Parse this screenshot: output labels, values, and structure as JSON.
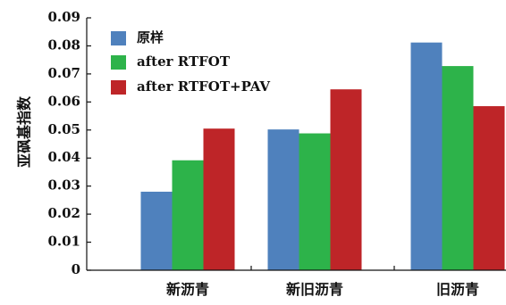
{
  "chart_data": {
    "type": "bar",
    "title": "",
    "xlabel": "",
    "ylabel": "亚砜基指数",
    "ylim": [
      0,
      0.09
    ],
    "yticks": [
      "0",
      "0.01",
      "0.02",
      "0.03",
      "0.04",
      "0.05",
      "0.06",
      "0.07",
      "0.08",
      "0.09"
    ],
    "categories": [
      "新沥青",
      "新旧沥青",
      "旧沥青"
    ],
    "series": [
      {
        "name": "原样",
        "color": "#4f81bd",
        "values": [
          0.028,
          0.0502,
          0.0812
        ]
      },
      {
        "name": "after RTFOT",
        "color": "#2db34a",
        "values": [
          0.0392,
          0.0488,
          0.0728
        ]
      },
      {
        "name": "after RTFOT+PAV",
        "color": "#be2528",
        "values": [
          0.0505,
          0.0645,
          0.0585
        ]
      }
    ],
    "legend_position": "top-left",
    "grid": false
  }
}
